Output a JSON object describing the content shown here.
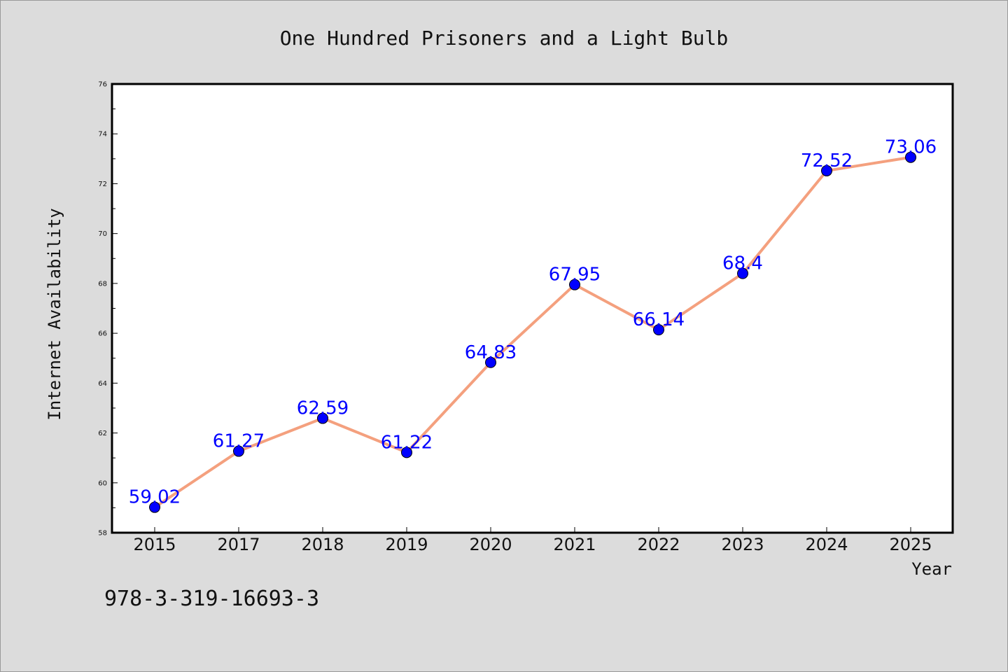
{
  "chart_data": {
    "type": "line",
    "title": "One Hundred Prisoners and a Light Bulb",
    "xlabel": "Year",
    "ylabel": "Internet Availability",
    "categories": [
      "2015",
      "2017",
      "2018",
      "2019",
      "2020",
      "2021",
      "2022",
      "2023",
      "2024",
      "2025"
    ],
    "series": [
      {
        "values": [
          59.02,
          61.27,
          62.59,
          61.22,
          64.83,
          67.95,
          66.14,
          68.4,
          72.52,
          73.06
        ],
        "labels": [
          "59.02",
          "61.27",
          "62.59",
          "61.22",
          "64.83",
          "67.95",
          "66.14",
          "68.4",
          "72.52",
          "73.06"
        ],
        "line_color": "#f4a07e",
        "marker_color": "#0000ff"
      }
    ],
    "ylim": [
      58,
      76
    ],
    "yticks": [
      "58",
      "60",
      "62",
      "64",
      "66",
      "68",
      "70",
      "72",
      "74",
      "76"
    ],
    "grid": false,
    "data_label_color": "#0000ff",
    "background_color": "#dcdcdc",
    "plot_background_color": "#ffffff"
  },
  "footer": {
    "isbn": "978-3-319-16693-3"
  }
}
